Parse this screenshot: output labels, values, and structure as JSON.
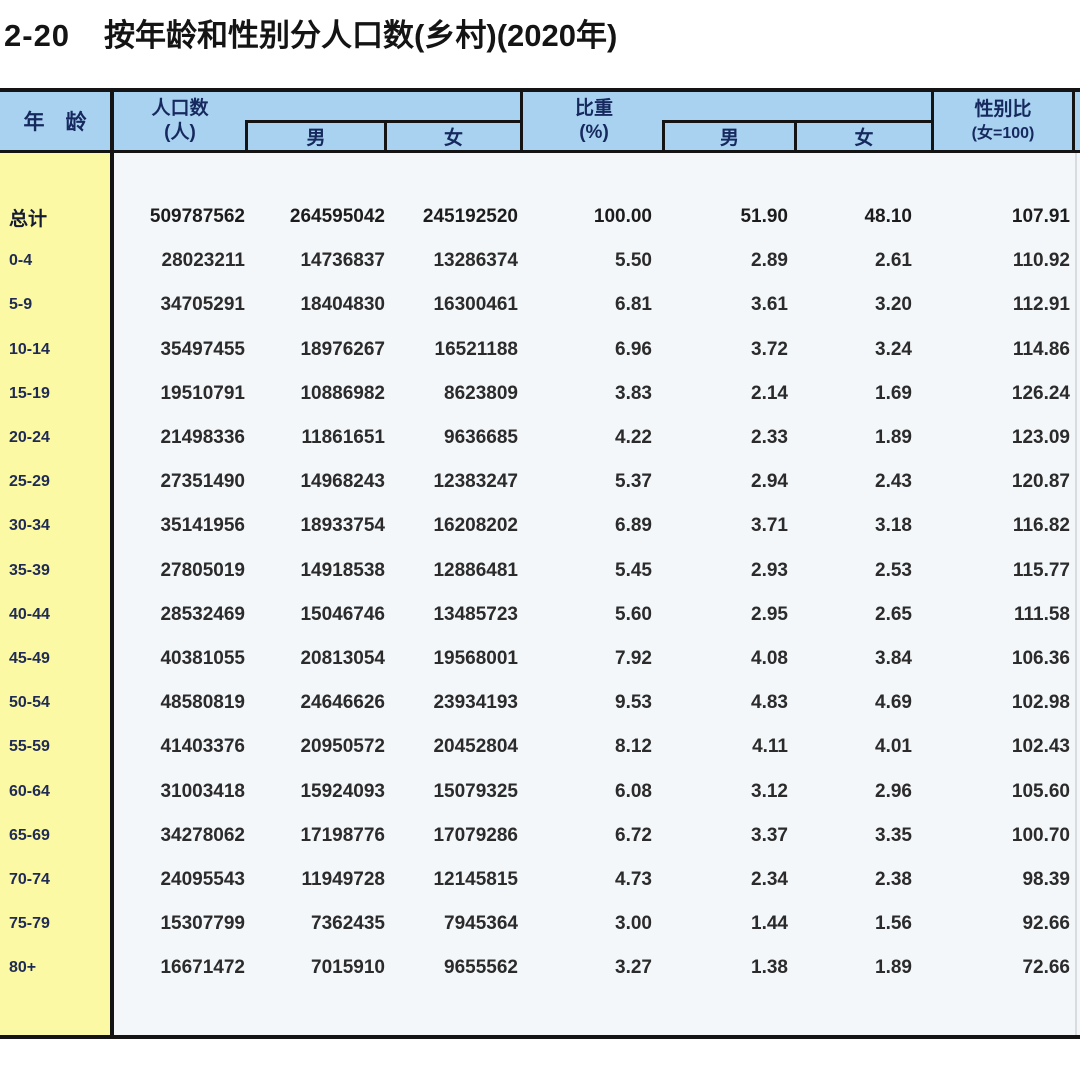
{
  "title": {
    "number": "2-20",
    "text": "按年龄和性别分人口数(乡村)(2020年)"
  },
  "colors": {
    "header_blue": "#a9d2f0",
    "age_column_yellow": "#fbf9a3",
    "body_background": "#f3f7fa",
    "grid_line": "#141414",
    "header_text": "#16295e"
  },
  "table": {
    "header": {
      "age": "年　龄",
      "population_line1": "人口数",
      "population_line2": "(人)",
      "male": "男",
      "female": "女",
      "share_line1": "比重",
      "share_line2": "(%)",
      "ratio_line1": "性别比",
      "ratio_line2": "(女=100)"
    },
    "rows": [
      {
        "age": "总计",
        "pop": "509787562",
        "pop_m": "264595042",
        "pop_f": "245192520",
        "pct": "100.00",
        "pct_m": "51.90",
        "pct_f": "48.10",
        "ratio": "107.91",
        "bold": true
      },
      {
        "age": "0-4",
        "pop": "28023211",
        "pop_m": "14736837",
        "pop_f": "13286374",
        "pct": "5.50",
        "pct_m": "2.89",
        "pct_f": "2.61",
        "ratio": "110.92",
        "bold": false
      },
      {
        "age": "5-9",
        "pop": "34705291",
        "pop_m": "18404830",
        "pop_f": "16300461",
        "pct": "6.81",
        "pct_m": "3.61",
        "pct_f": "3.20",
        "ratio": "112.91",
        "bold": false
      },
      {
        "age": "10-14",
        "pop": "35497455",
        "pop_m": "18976267",
        "pop_f": "16521188",
        "pct": "6.96",
        "pct_m": "3.72",
        "pct_f": "3.24",
        "ratio": "114.86",
        "bold": false
      },
      {
        "age": "15-19",
        "pop": "19510791",
        "pop_m": "10886982",
        "pop_f": "8623809",
        "pct": "3.83",
        "pct_m": "2.14",
        "pct_f": "1.69",
        "ratio": "126.24",
        "bold": false
      },
      {
        "age": "20-24",
        "pop": "21498336",
        "pop_m": "11861651",
        "pop_f": "9636685",
        "pct": "4.22",
        "pct_m": "2.33",
        "pct_f": "1.89",
        "ratio": "123.09",
        "bold": false
      },
      {
        "age": "25-29",
        "pop": "27351490",
        "pop_m": "14968243",
        "pop_f": "12383247",
        "pct": "5.37",
        "pct_m": "2.94",
        "pct_f": "2.43",
        "ratio": "120.87",
        "bold": false
      },
      {
        "age": "30-34",
        "pop": "35141956",
        "pop_m": "18933754",
        "pop_f": "16208202",
        "pct": "6.89",
        "pct_m": "3.71",
        "pct_f": "3.18",
        "ratio": "116.82",
        "bold": false
      },
      {
        "age": "35-39",
        "pop": "27805019",
        "pop_m": "14918538",
        "pop_f": "12886481",
        "pct": "5.45",
        "pct_m": "2.93",
        "pct_f": "2.53",
        "ratio": "115.77",
        "bold": false
      },
      {
        "age": "40-44",
        "pop": "28532469",
        "pop_m": "15046746",
        "pop_f": "13485723",
        "pct": "5.60",
        "pct_m": "2.95",
        "pct_f": "2.65",
        "ratio": "111.58",
        "bold": false
      },
      {
        "age": "45-49",
        "pop": "40381055",
        "pop_m": "20813054",
        "pop_f": "19568001",
        "pct": "7.92",
        "pct_m": "4.08",
        "pct_f": "3.84",
        "ratio": "106.36",
        "bold": false
      },
      {
        "age": "50-54",
        "pop": "48580819",
        "pop_m": "24646626",
        "pop_f": "23934193",
        "pct": "9.53",
        "pct_m": "4.83",
        "pct_f": "4.69",
        "ratio": "102.98",
        "bold": false
      },
      {
        "age": "55-59",
        "pop": "41403376",
        "pop_m": "20950572",
        "pop_f": "20452804",
        "pct": "8.12",
        "pct_m": "4.11",
        "pct_f": "4.01",
        "ratio": "102.43",
        "bold": false
      },
      {
        "age": "60-64",
        "pop": "31003418",
        "pop_m": "15924093",
        "pop_f": "15079325",
        "pct": "6.08",
        "pct_m": "3.12",
        "pct_f": "2.96",
        "ratio": "105.60",
        "bold": false
      },
      {
        "age": "65-69",
        "pop": "34278062",
        "pop_m": "17198776",
        "pop_f": "17079286",
        "pct": "6.72",
        "pct_m": "3.37",
        "pct_f": "3.35",
        "ratio": "100.70",
        "bold": false
      },
      {
        "age": "70-74",
        "pop": "24095543",
        "pop_m": "11949728",
        "pop_f": "12145815",
        "pct": "4.73",
        "pct_m": "2.34",
        "pct_f": "2.38",
        "ratio": "98.39",
        "bold": false
      },
      {
        "age": "75-79",
        "pop": "15307799",
        "pop_m": "7362435",
        "pop_f": "7945364",
        "pct": "3.00",
        "pct_m": "1.44",
        "pct_f": "1.56",
        "ratio": "92.66",
        "bold": false
      },
      {
        "age": "80+",
        "pop": "16671472",
        "pop_m": "7015910",
        "pop_f": "9655562",
        "pct": "3.27",
        "pct_m": "1.38",
        "pct_f": "1.89",
        "ratio": "72.66",
        "bold": false
      }
    ]
  }
}
